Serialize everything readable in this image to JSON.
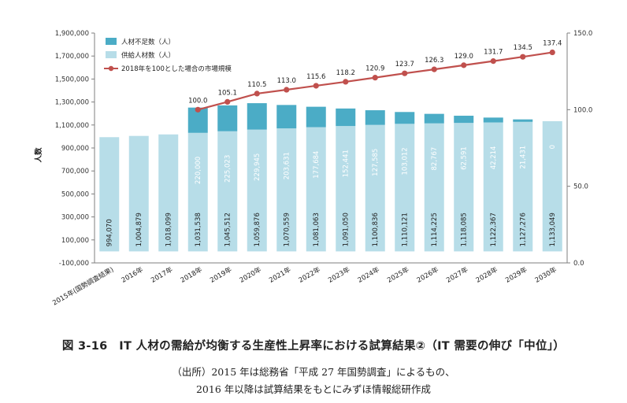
{
  "figure": {
    "title": "図 3-16　IT 人材の需給が均衡する生産性上昇率における試算結果②（IT 需要の伸び「中位」）",
    "source_line1": "（出所）2015 年は総務省「平成 27 年国勢調査」によるもの、",
    "source_line2": "2016 年以降は試算結果をもとにみずほ情報総研作成"
  },
  "chart_data": {
    "type": "bar",
    "stacked": true,
    "categories": [
      "2015年(国勢調査結果)",
      "2016年",
      "2017年",
      "2018年",
      "2019年",
      "2020年",
      "2021年",
      "2022年",
      "2023年",
      "2024年",
      "2025年",
      "2026年",
      "2027年",
      "2028年",
      "2029年",
      "2030年"
    ],
    "series": [
      {
        "name": "供給人材数（人）",
        "color": "#b7dde8",
        "values": [
          994070,
          1004879,
          1018099,
          1031538,
          1045512,
          1059876,
          1070559,
          1081063,
          1091050,
          1100836,
          1110121,
          1114225,
          1118085,
          1122367,
          1127276,
          1133049
        ],
        "labels": [
          "994,070",
          "1,004,879",
          "1,018,099",
          "1,031,538",
          "1,045,512",
          "1,059,876",
          "1,070,559",
          "1,081,063",
          "1,091,050",
          "1,100,836",
          "1,110,121",
          "1,114,225",
          "1,118,085",
          "1,122,367",
          "1,127,276",
          "1,133,049"
        ]
      },
      {
        "name": "人材不足数（人）",
        "color": "#4bacc6",
        "values": [
          null,
          null,
          null,
          220000,
          225023,
          229945,
          203631,
          177684,
          152441,
          127585,
          103012,
          82767,
          62591,
          42214,
          21431,
          0
        ],
        "labels": [
          "",
          "",
          "",
          "220,000",
          "225,023",
          "229,945",
          "203,631",
          "177,684",
          "152,441",
          "127,585",
          "103,012",
          "82,767",
          "62,591",
          "42,214",
          "21,431",
          "0"
        ]
      }
    ],
    "line_series": {
      "name": "2018年を100とした場合の市場規模",
      "color": "#c0504d",
      "axis": "right",
      "x_start_index": 3,
      "values": [
        100.0,
        105.1,
        110.5,
        113.0,
        115.6,
        118.2,
        120.9,
        123.7,
        126.3,
        129.0,
        131.7,
        134.5,
        137.4
      ],
      "labels": [
        "100.0",
        "105.1",
        "110.5",
        "113.0",
        "115.6",
        "118.2",
        "120.9",
        "123.7",
        "126.3",
        "129.0",
        "131.7",
        "134.5",
        "137.4"
      ]
    },
    "ylabel": "人数",
    "ylim": [
      -100000,
      1900000
    ],
    "yticks": [
      "-100,000",
      "100,000",
      "300,000",
      "500,000",
      "700,000",
      "900,000",
      "1,100,000",
      "1,300,000",
      "1,500,000",
      "1,700,000",
      "1,900,000"
    ],
    "y2lim": [
      0,
      150
    ],
    "y2ticks": [
      "0.0",
      "50.0",
      "100.0",
      "150.0"
    ],
    "legend_position": "top-left",
    "grid": false
  }
}
